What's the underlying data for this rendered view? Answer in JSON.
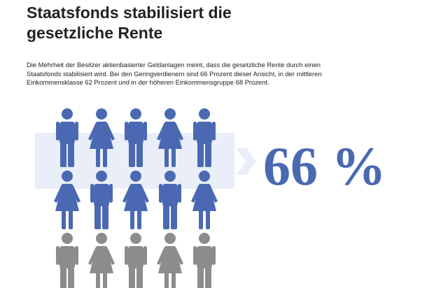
{
  "chart_data": {
    "type": "pictograph",
    "title": "Staatsfonds stabilisiert die gesetzliche Rente",
    "subtitle": "Die Mehrheit der Besitzer aktienbasierter Geldanlagen meint, dass die gesetzliche Rente durch einen Staatsfonds stabilisiert wird. Bei den Geringverdienern sind 66 Prozent dieser Ansicht, in der mittleren Einkommensklasse 62 Prozent und in der höheren Einkommensgruppe 68 Prozent.",
    "values": [
      66
    ],
    "value_labels": [
      "66 %"
    ],
    "color": "#4a69b2",
    "rest_color": "#8c8c8c"
  }
}
